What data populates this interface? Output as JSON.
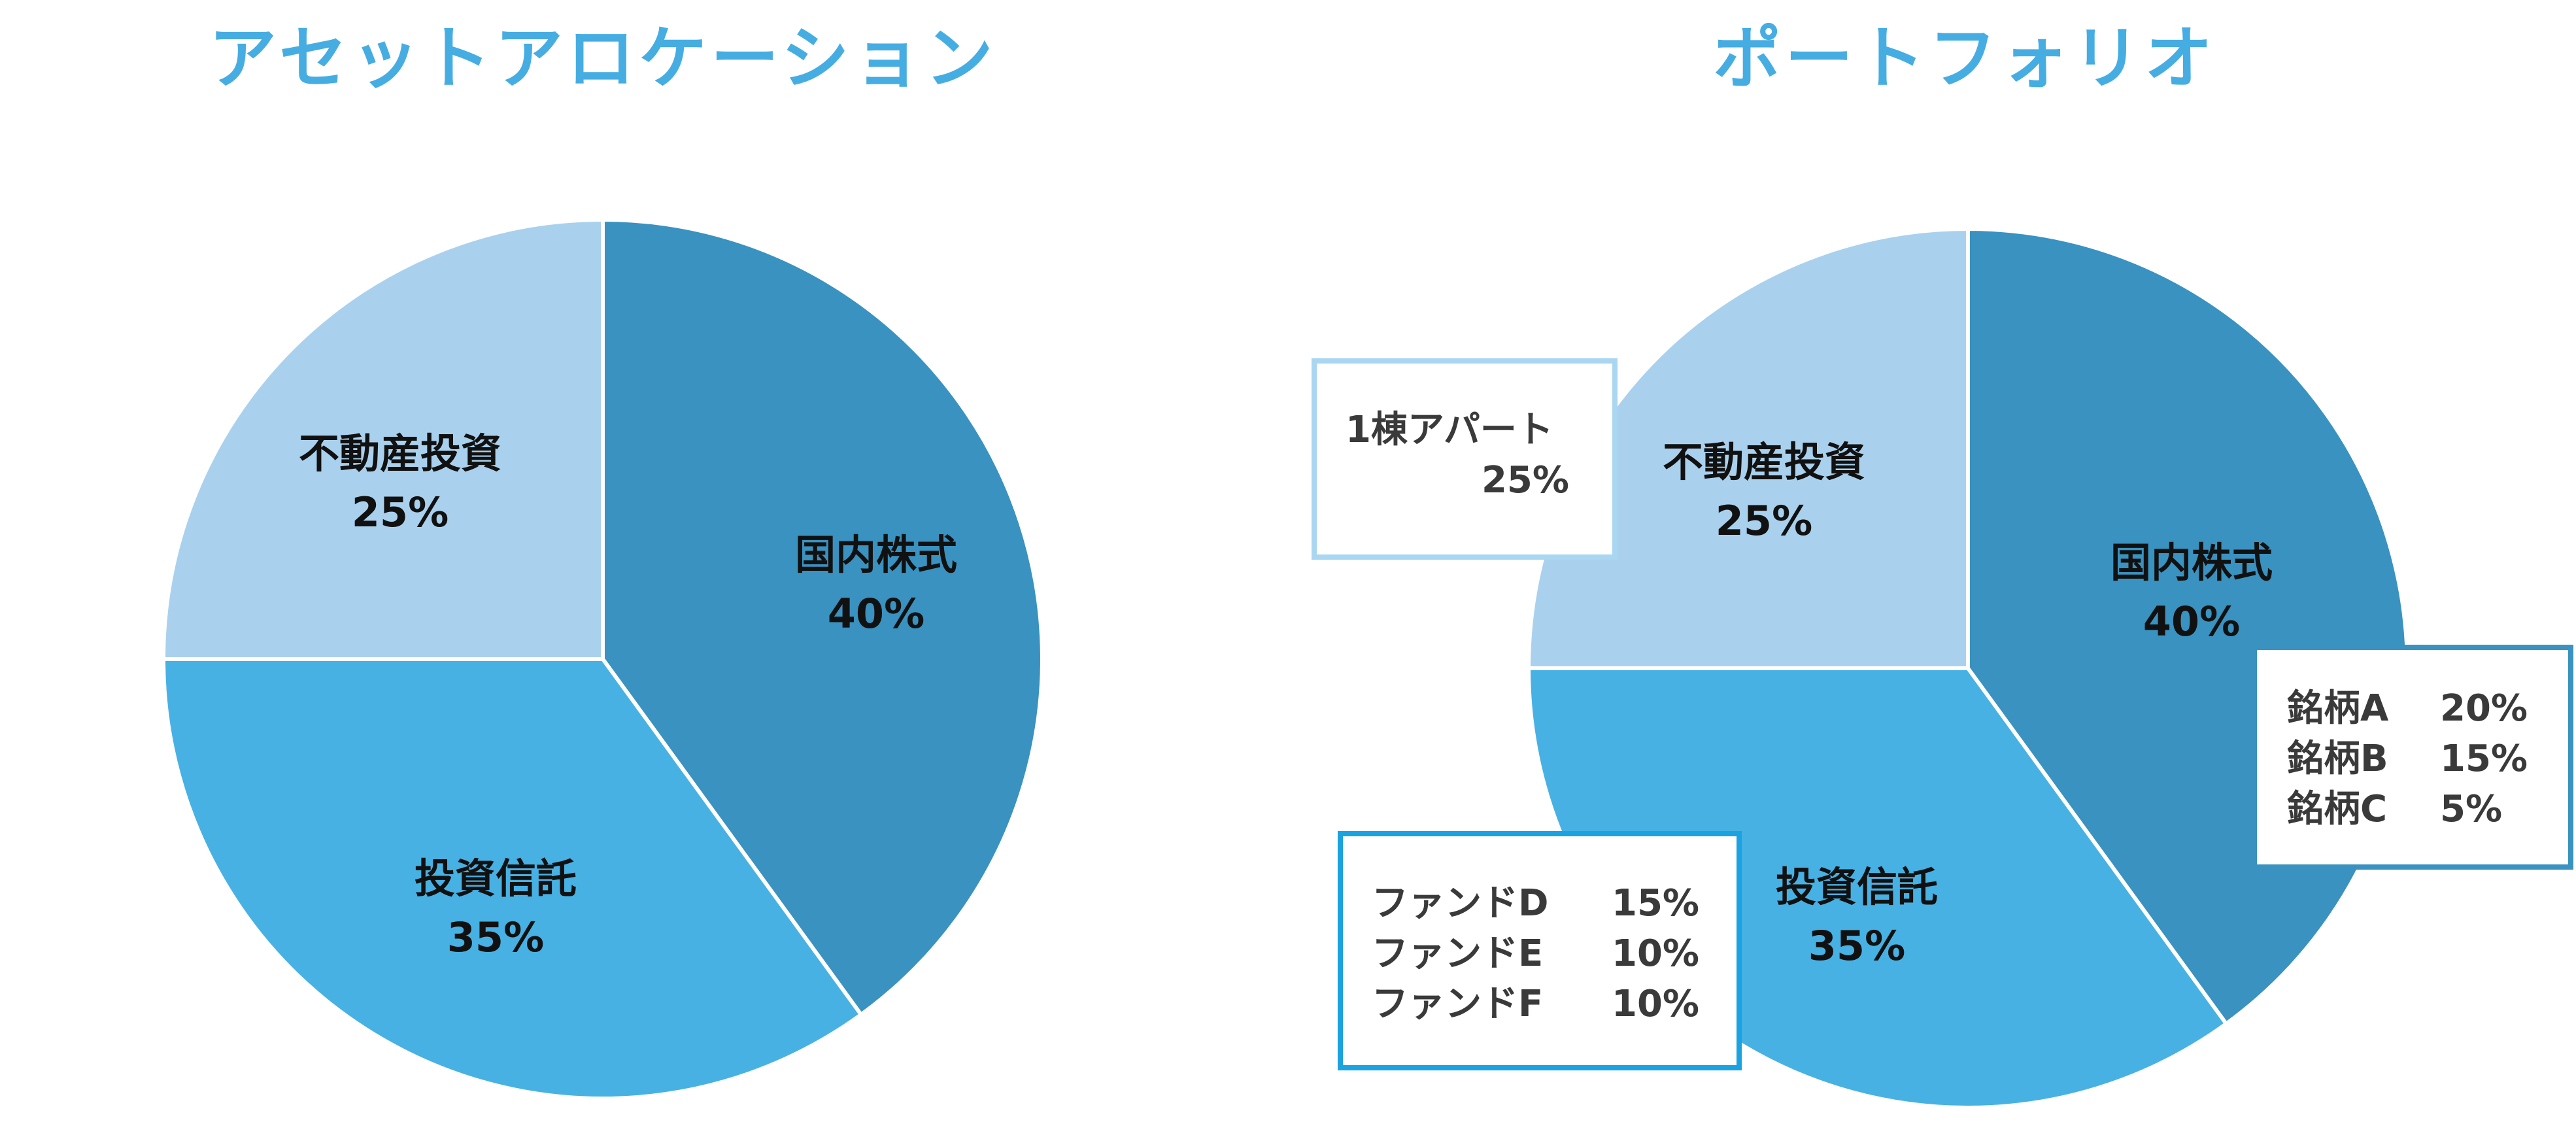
{
  "colors": {
    "title": "#46ade2",
    "domestic_stocks": "#3992c0",
    "investment_trusts": "#47b1e4",
    "real_estate": "#a9d1ee",
    "slice_border": "#ffffff",
    "box_stocks_border": "#3992c0",
    "box_trusts_border": "#1aa3e0",
    "box_realestate_border": "#a9d6f0"
  },
  "chart_data": [
    {
      "type": "pie",
      "title": "アセットアロケーション",
      "slices": [
        {
          "key": "domestic_stocks",
          "name": "国内株式",
          "value": 40,
          "value_label": "40%"
        },
        {
          "key": "investment_trusts",
          "name": "投資信託",
          "value": 35,
          "value_label": "35%"
        },
        {
          "key": "real_estate",
          "name": "不動産投資",
          "value": 25,
          "value_label": "25%"
        }
      ]
    },
    {
      "type": "pie",
      "title": "ポートフォリオ",
      "slices": [
        {
          "key": "domestic_stocks",
          "name": "国内株式",
          "value": 40,
          "value_label": "40%"
        },
        {
          "key": "investment_trusts",
          "name": "投資信託",
          "value": 35,
          "value_label": "35%"
        },
        {
          "key": "real_estate",
          "name": "不動産投資",
          "value": 25,
          "value_label": "25%"
        }
      ],
      "breakdowns": [
        {
          "key": "domestic_stocks",
          "items": [
            {
              "name": "銘柄A",
              "value_label": "20%"
            },
            {
              "name": "銘柄B",
              "value_label": "15%"
            },
            {
              "name": "銘柄C",
              "value_label": "5%"
            }
          ]
        },
        {
          "key": "investment_trusts",
          "items": [
            {
              "name": "ファンドD",
              "value_label": "15%"
            },
            {
              "name": "ファンドE",
              "value_label": "10%"
            },
            {
              "name": "ファンドF",
              "value_label": "10%"
            }
          ]
        },
        {
          "key": "real_estate",
          "items": [
            {
              "name": "1棟アパート",
              "value_label": "25%"
            }
          ]
        }
      ]
    }
  ]
}
